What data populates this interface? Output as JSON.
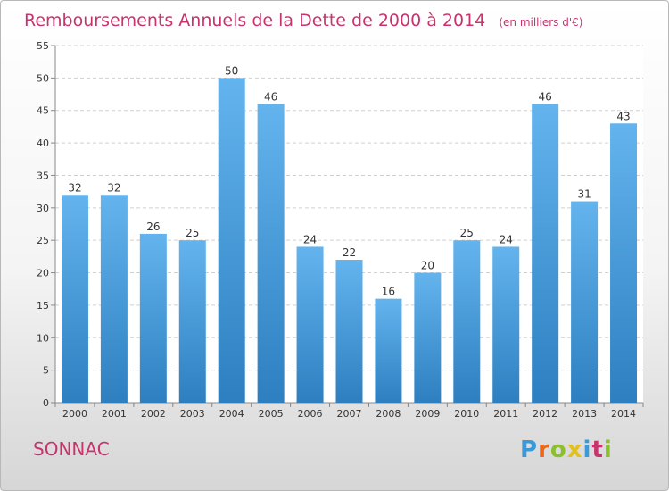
{
  "chart_data": {
    "type": "bar",
    "title": "Remboursements Annuels de la Dette de 2000 à 2014",
    "unit_note": "(en milliers d'€)",
    "categories": [
      "2000",
      "2001",
      "2002",
      "2003",
      "2004",
      "2005",
      "2006",
      "2007",
      "2008",
      "2009",
      "2010",
      "2011",
      "2012",
      "2013",
      "2014"
    ],
    "values": [
      32,
      32,
      26,
      25,
      50,
      46,
      24,
      22,
      16,
      20,
      25,
      24,
      46,
      31,
      43
    ],
    "data_labels": [
      "32",
      "32",
      "26",
      "25",
      "50",
      "46",
      "24",
      "22",
      "16",
      "20",
      "25",
      "24",
      "46",
      "31",
      "43"
    ],
    "ylim": [
      0,
      55
    ],
    "yticks": [
      0,
      5,
      10,
      15,
      20,
      25,
      30,
      35,
      40,
      45,
      50,
      55
    ],
    "grid": true,
    "bar_color_top": "#63b4ee",
    "bar_color_bottom": "#2d7fc0"
  },
  "footer": {
    "town": "SONNAC",
    "brand": "Proxiti",
    "brand_colors": [
      "#3a9ad9",
      "#e8691c",
      "#8cbf2f",
      "#e2c11a",
      "#3a9ad9",
      "#c8336e",
      "#8cbf2f"
    ]
  }
}
